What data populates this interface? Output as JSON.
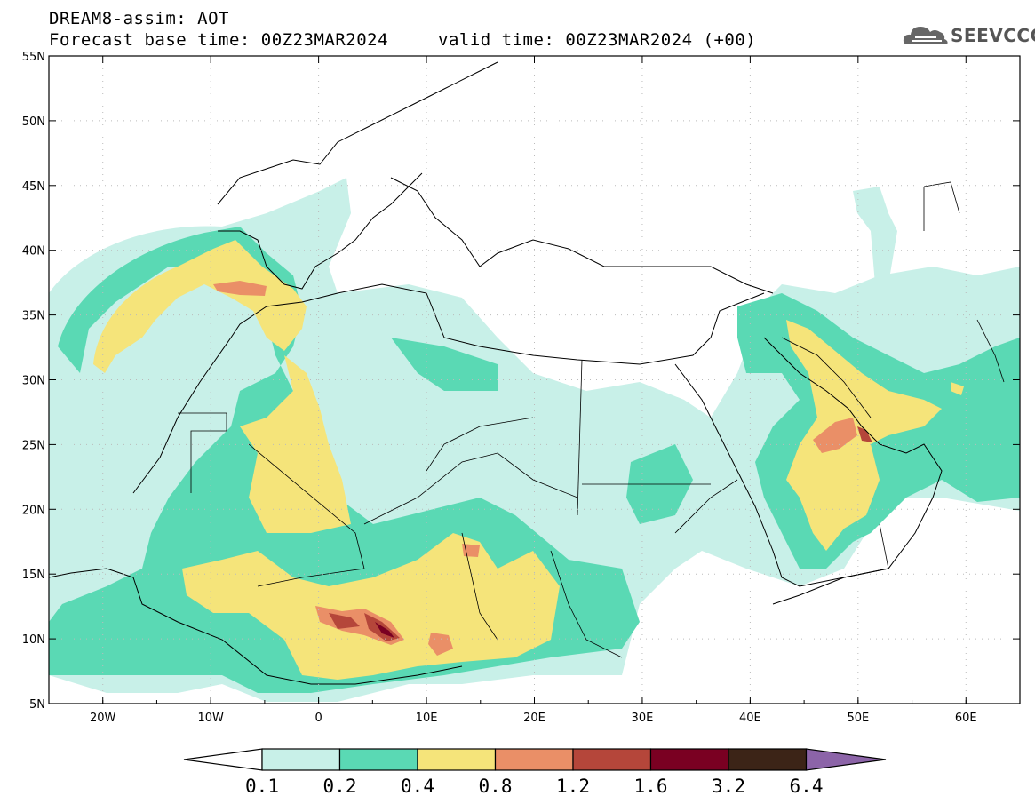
{
  "header": {
    "title": "DREAM8-assim: AOT",
    "base_time": "Forecast base time: 00Z23MAR2024",
    "valid_time": "valid time: 00Z23MAR2024 (+00)"
  },
  "logo": {
    "text": "SEEVCCC",
    "icon": "cloud-icon"
  },
  "map": {
    "lon_range": [
      -25,
      65
    ],
    "lat_range": [
      5,
      55
    ],
    "grid": "dotted",
    "lat_ticks": [
      "5N",
      "10N",
      "15N",
      "20N",
      "25N",
      "30N",
      "35N",
      "40N",
      "45N",
      "50N",
      "55N"
    ],
    "lon_ticks": [
      "20W",
      "10W",
      "0",
      "10E",
      "20E",
      "30E",
      "40E",
      "50E",
      "60E"
    ]
  },
  "colorbar": {
    "labels": [
      "0.1",
      "0.2",
      "0.4",
      "0.8",
      "1.2",
      "1.6",
      "3.2",
      "6.4"
    ],
    "colors": [
      "#ffffff",
      "#c8f0e8",
      "#5ad9b4",
      "#f5e47a",
      "#ea8f67",
      "#b5463a",
      "#7a0022",
      "#3c2417",
      "#8c64a8"
    ]
  },
  "chart_data": {
    "type": "heatmap",
    "title": "DREAM8-assim: AOT",
    "field": "Aerosol Optical Thickness",
    "xlim": [
      -25,
      65
    ],
    "ylim": [
      5,
      55
    ],
    "levels": [
      0.1,
      0.2,
      0.4,
      0.8,
      1.2,
      1.6,
      3.2,
      6.4
    ],
    "grid": true
  }
}
